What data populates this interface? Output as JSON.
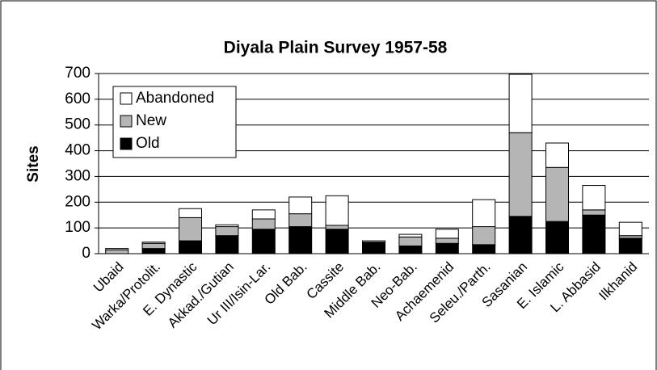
{
  "chart_data": {
    "type": "stacked_bar",
    "title": "Diyala Plain Survey 1957-58",
    "y_label": "Sites",
    "categories": [
      "Ubaid",
      "Warka/Protolit.",
      "E. Dynastic",
      "Akkad./Gutian",
      "Ur III/Isin-Lar.",
      "Old Bab.",
      "Cassite",
      "Middle Bab.",
      "Neo-Bab.",
      "Achaemenid",
      "Seleu./Parth.",
      "Sasanian",
      "E. Islamic",
      "L. Abbasid",
      "Ilkhanid"
    ],
    "series": [
      {
        "name": "Old",
        "color": "#000000",
        "values": [
          0,
          20,
          50,
          70,
          95,
          105,
          95,
          45,
          30,
          40,
          35,
          145,
          125,
          150,
          60
        ]
      },
      {
        "name": "New",
        "color": "#b5b5b5",
        "values": [
          15,
          20,
          90,
          35,
          40,
          50,
          15,
          0,
          35,
          20,
          70,
          325,
          210,
          20,
          10
        ]
      },
      {
        "name": "Abandoned",
        "color": "#ffffff",
        "values": [
          5,
          5,
          35,
          7,
          35,
          65,
          115,
          5,
          10,
          35,
          105,
          227,
          95,
          95,
          52
        ]
      }
    ],
    "ylim": [
      0,
      700
    ],
    "yticks": [
      0,
      100,
      200,
      300,
      400,
      500,
      600,
      700
    ],
    "grid": true,
    "legend": "upper left"
  }
}
